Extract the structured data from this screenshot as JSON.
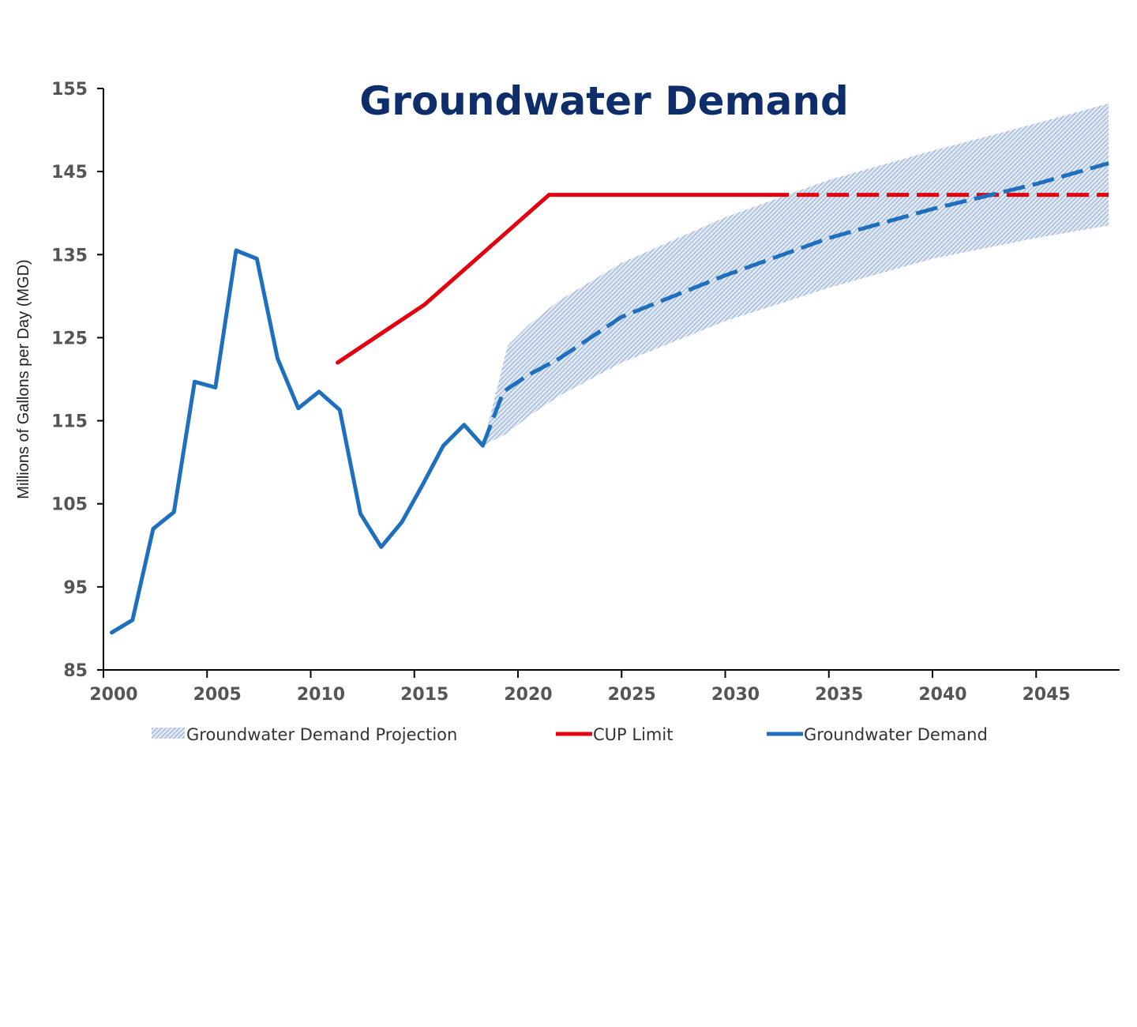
{
  "chart_data": {
    "type": "line",
    "title": "Groundwater Demand",
    "xlabel": "",
    "ylabel": "Millions of Gallons per Day (MGD)",
    "xlim": [
      2000,
      2048.5
    ],
    "ylim": [
      85,
      155
    ],
    "x_ticks": [
      "2000",
      "2005",
      "2010",
      "2015",
      "2020",
      "2025",
      "2030",
      "2035",
      "2040",
      "2045"
    ],
    "y_ticks": [
      "155",
      "145",
      "135",
      "125",
      "115",
      "105",
      "95",
      "85"
    ],
    "legend_position": "bottom",
    "grid": false,
    "series": [
      {
        "name": "Groundwater Demand Projection",
        "kind": "band",
        "color": "#8aa6c8",
        "x": [
          2018.3,
          2019.5,
          2020.5,
          2022,
          2025,
          2030,
          2035,
          2040,
          2045,
          2048.5
        ],
        "lower": [
          112,
          113.5,
          115.5,
          118,
          122,
          127,
          131,
          134.5,
          137,
          138.5
        ],
        "upper": [
          112,
          124,
          126.5,
          129.5,
          134,
          139.5,
          144,
          147.5,
          150.8,
          153.2
        ]
      },
      {
        "name": "CUP Limit",
        "kind": "line",
        "color": "#e3000f",
        "x": [
          2011.3,
          2015.5,
          2021.5,
          2032,
          2048.5
        ],
        "y": [
          122,
          129,
          142.2,
          142.2,
          142.2
        ],
        "dashed_from": 2032
      },
      {
        "name": "Groundwater Demand",
        "kind": "line",
        "color": "#1f6fbf",
        "x": [
          2000.4,
          2001.4,
          2002.4,
          2003.4,
          2004.4,
          2005.4,
          2006.4,
          2007.4,
          2008.4,
          2009.4,
          2010.4,
          2011.4,
          2012.4,
          2013.4,
          2014.4,
          2015.4,
          2016.4,
          2017.4,
          2018.3,
          2019.3,
          2020.5,
          2022,
          2025,
          2030,
          2035,
          2040,
          2045,
          2048.5
        ],
        "y": [
          89.5,
          91,
          102,
          104,
          119.7,
          119,
          135.5,
          134.5,
          122.5,
          116.5,
          118.5,
          116.3,
          103.8,
          99.8,
          102.8,
          107.3,
          112,
          114.5,
          112,
          118.5,
          120.5,
          122.5,
          127.5,
          132.5,
          137,
          140.5,
          143.5,
          146
        ],
        "dashed_from": 2018.3
      }
    ]
  }
}
